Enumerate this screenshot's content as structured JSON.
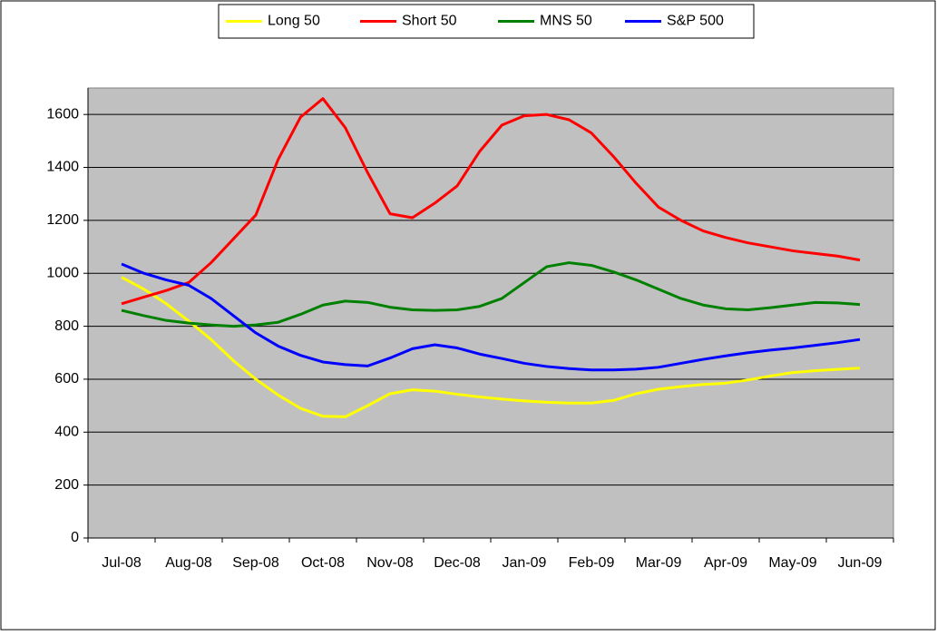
{
  "chart_data": {
    "type": "line",
    "categories": [
      "Jul-08",
      null,
      null,
      "Aug-08",
      null,
      null,
      "Sep-08",
      null,
      null,
      "Oct-08",
      null,
      null,
      "Nov-08",
      null,
      null,
      "Dec-08",
      null,
      null,
      "Jan-09",
      null,
      null,
      "Feb-09",
      null,
      null,
      "Mar-09",
      null,
      null,
      "Apr-09",
      null,
      null,
      "May-09",
      null,
      null,
      "Jun-09"
    ],
    "series": [
      {
        "name": "Long 50",
        "color": "#ffff00",
        "values": [
          985,
          940,
          885,
          820,
          750,
          670,
          600,
          540,
          490,
          460,
          458,
          500,
          545,
          560,
          555,
          543,
          533,
          525,
          518,
          513,
          510,
          510,
          520,
          545,
          562,
          572,
          580,
          585,
          597,
          612,
          625,
          632,
          637,
          642
        ]
      },
      {
        "name": "Short 50",
        "color": "#ff0000",
        "values": [
          885,
          910,
          935,
          965,
          1040,
          1130,
          1220,
          1430,
          1590,
          1660,
          1550,
          1380,
          1225,
          1210,
          1265,
          1330,
          1460,
          1560,
          1595,
          1600,
          1580,
          1530,
          1440,
          1340,
          1250,
          1200,
          1160,
          1135,
          1115,
          1100,
          1085,
          1075,
          1065,
          1050
        ]
      },
      {
        "name": "MNS 50",
        "color": "#008000",
        "values": [
          860,
          840,
          822,
          812,
          805,
          800,
          805,
          815,
          845,
          880,
          895,
          890,
          872,
          862,
          860,
          862,
          875,
          905,
          965,
          1025,
          1040,
          1030,
          1005,
          975,
          940,
          905,
          880,
          866,
          862,
          870,
          880,
          890,
          888,
          882
        ]
      },
      {
        "name": "S&P 500",
        "color": "#0000ff",
        "values": [
          1035,
          1000,
          975,
          955,
          905,
          840,
          775,
          725,
          690,
          665,
          655,
          650,
          680,
          715,
          730,
          718,
          695,
          678,
          660,
          648,
          640,
          635,
          635,
          638,
          645,
          660,
          675,
          688,
          700,
          710,
          718,
          728,
          738,
          750
        ]
      }
    ],
    "ylim": [
      0,
      1700
    ],
    "yticks": [
      0,
      200,
      400,
      600,
      800,
      1000,
      1200,
      1400,
      1600
    ],
    "grid": true,
    "legend": "top",
    "plot_background": "#c0c0c0"
  }
}
